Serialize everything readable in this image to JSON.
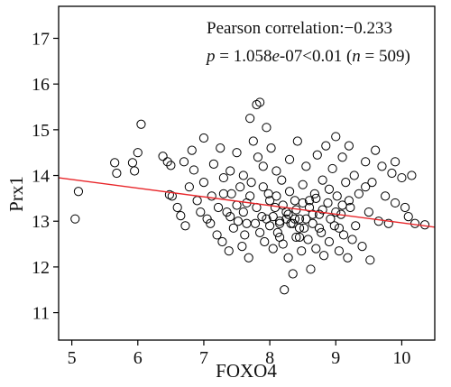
{
  "chart_data": {
    "type": "scatter",
    "xlabel": "FOXO4",
    "ylabel": "Prx1",
    "xlim": [
      4.8,
      10.5
    ],
    "ylim": [
      10.4,
      17.7
    ],
    "x_ticks": [
      "5",
      "6",
      "7",
      "8",
      "9",
      "10"
    ],
    "y_ticks": [
      "11",
      "12",
      "13",
      "14",
      "15",
      "16",
      "17"
    ],
    "annotation": {
      "line1": "Pearson correlation:−0.233",
      "p_symbol": "p",
      "p_eq": " = 1.058",
      "e_symbol": "e",
      "p_tail": "-07<0.01 (",
      "n_symbol": "n",
      "n_tail": " = 509)"
    },
    "fit_line": {
      "color": "#e8262a",
      "x": [
        4.8,
        10.5
      ],
      "y": [
        13.95,
        12.87
      ]
    },
    "n": 509,
    "marker": {
      "shape": "open-circle",
      "color": "#000000"
    },
    "points_visible": [
      [
        5.05,
        13.05
      ],
      [
        5.1,
        13.65
      ],
      [
        5.65,
        14.28
      ],
      [
        5.68,
        14.05
      ],
      [
        5.92,
        14.28
      ],
      [
        5.95,
        14.1
      ],
      [
        6.0,
        14.5
      ],
      [
        6.05,
        15.12
      ],
      [
        6.38,
        14.42
      ],
      [
        6.45,
        14.3
      ],
      [
        6.5,
        14.22
      ],
      [
        6.48,
        13.58
      ],
      [
        6.52,
        13.55
      ],
      [
        6.6,
        13.3
      ],
      [
        6.65,
        13.12
      ],
      [
        6.7,
        14.3
      ],
      [
        6.72,
        12.9
      ],
      [
        6.78,
        13.75
      ],
      [
        6.82,
        14.55
      ],
      [
        6.85,
        14.12
      ],
      [
        6.9,
        13.45
      ],
      [
        6.95,
        13.2
      ],
      [
        7.0,
        14.82
      ],
      [
        7.0,
        13.85
      ],
      [
        7.05,
        13.05
      ],
      [
        7.1,
        12.95
      ],
      [
        7.12,
        13.55
      ],
      [
        7.15,
        14.25
      ],
      [
        7.2,
        12.7
      ],
      [
        7.22,
        13.3
      ],
      [
        7.25,
        14.6
      ],
      [
        7.28,
        12.55
      ],
      [
        7.3,
        13.95
      ],
      [
        7.35,
        13.2
      ],
      [
        7.38,
        12.35
      ],
      [
        7.4,
        14.1
      ],
      [
        7.42,
        13.6
      ],
      [
        7.45,
        12.85
      ],
      [
        7.5,
        14.5
      ],
      [
        7.52,
        13.0
      ],
      [
        7.55,
        13.75
      ],
      [
        7.58,
        12.45
      ],
      [
        7.6,
        14.0
      ],
      [
        7.62,
        12.7
      ],
      [
        7.65,
        13.4
      ],
      [
        7.68,
        12.2
      ],
      [
        7.7,
        15.25
      ],
      [
        7.72,
        13.85
      ],
      [
        7.75,
        14.75
      ],
      [
        7.78,
        12.95
      ],
      [
        7.8,
        15.55
      ],
      [
        7.82,
        14.4
      ],
      [
        7.85,
        15.6
      ],
      [
        7.88,
        13.1
      ],
      [
        7.9,
        14.2
      ],
      [
        7.92,
        12.55
      ],
      [
        7.95,
        15.05
      ],
      [
        7.98,
        13.6
      ],
      [
        8.0,
        12.9
      ],
      [
        8.02,
        14.6
      ],
      [
        8.05,
        12.4
      ],
      [
        8.08,
        13.3
      ],
      [
        8.1,
        14.1
      ],
      [
        8.12,
        12.75
      ],
      [
        8.15,
        13.0
      ],
      [
        8.18,
        13.9
      ],
      [
        8.2,
        12.5
      ],
      [
        8.22,
        11.5
      ],
      [
        8.25,
        13.2
      ],
      [
        8.28,
        12.2
      ],
      [
        8.3,
        14.35
      ],
      [
        8.32,
        12.95
      ],
      [
        8.35,
        11.85
      ],
      [
        8.38,
        13.45
      ],
      [
        8.4,
        12.65
      ],
      [
        8.42,
        14.75
      ],
      [
        8.45,
        13.05
      ],
      [
        8.48,
        12.35
      ],
      [
        8.5,
        13.8
      ],
      [
        8.52,
        12.85
      ],
      [
        8.55,
        14.2
      ],
      [
        8.58,
        12.6
      ],
      [
        8.6,
        13.3
      ],
      [
        8.62,
        11.95
      ],
      [
        8.65,
        12.95
      ],
      [
        8.68,
        13.6
      ],
      [
        8.7,
        12.4
      ],
      [
        8.72,
        14.45
      ],
      [
        8.75,
        13.15
      ],
      [
        8.78,
        12.75
      ],
      [
        8.8,
        13.9
      ],
      [
        8.82,
        12.25
      ],
      [
        8.85,
        14.65
      ],
      [
        8.88,
        13.4
      ],
      [
        8.9,
        12.55
      ],
      [
        8.92,
        13.05
      ],
      [
        8.95,
        14.15
      ],
      [
        8.98,
        12.9
      ],
      [
        9.0,
        14.85
      ],
      [
        9.02,
        13.55
      ],
      [
        9.05,
        12.35
      ],
      [
        9.08,
        13.15
      ],
      [
        9.1,
        14.4
      ],
      [
        9.12,
        12.7
      ],
      [
        9.15,
        13.85
      ],
      [
        9.18,
        12.2
      ],
      [
        9.2,
        14.65
      ],
      [
        9.22,
        13.3
      ],
      [
        9.25,
        12.6
      ],
      [
        9.28,
        14.0
      ],
      [
        9.3,
        12.9
      ],
      [
        9.35,
        13.6
      ],
      [
        9.4,
        12.45
      ],
      [
        9.45,
        14.3
      ],
      [
        9.5,
        13.2
      ],
      [
        9.52,
        12.15
      ],
      [
        9.55,
        13.85
      ],
      [
        9.6,
        14.55
      ],
      [
        9.65,
        13.0
      ],
      [
        9.7,
        14.2
      ],
      [
        9.75,
        13.55
      ],
      [
        9.8,
        12.95
      ],
      [
        9.85,
        14.05
      ],
      [
        9.9,
        13.4
      ],
      [
        10.0,
        13.95
      ],
      [
        10.05,
        13.3
      ],
      [
        10.1,
        13.1
      ],
      [
        10.15,
        14.0
      ],
      [
        10.2,
        12.95
      ],
      [
        10.35,
        12.92
      ],
      [
        9.9,
        14.3
      ],
      [
        9.45,
        13.75
      ],
      [
        7.3,
        13.6
      ],
      [
        7.5,
        13.35
      ],
      [
        7.7,
        13.55
      ],
      [
        7.9,
        13.75
      ],
      [
        8.1,
        13.55
      ],
      [
        8.3,
        13.65
      ],
      [
        8.5,
        13.4
      ],
      [
        8.7,
        13.5
      ],
      [
        8.9,
        13.7
      ],
      [
        9.1,
        13.35
      ],
      [
        7.4,
        13.1
      ],
      [
        7.6,
        13.2
      ],
      [
        7.8,
        13.3
      ],
      [
        8.0,
        13.45
      ],
      [
        8.2,
        13.35
      ],
      [
        8.4,
        13.25
      ],
      [
        8.6,
        13.45
      ],
      [
        8.8,
        13.25
      ],
      [
        9.0,
        13.2
      ],
      [
        9.2,
        13.45
      ],
      [
        8.15,
        12.95
      ],
      [
        8.25,
        13.05
      ],
      [
        8.35,
        12.95
      ],
      [
        8.45,
        12.85
      ],
      [
        8.05,
        13.1
      ],
      [
        8.55,
        13.05
      ],
      [
        7.95,
        13.05
      ],
      [
        8.65,
        13.15
      ],
      [
        8.28,
        13.15
      ],
      [
        8.38,
        13.05
      ],
      [
        7.85,
        12.75
      ],
      [
        8.75,
        12.85
      ],
      [
        8.15,
        12.65
      ],
      [
        8.45,
        12.65
      ],
      [
        7.65,
        12.95
      ],
      [
        9.05,
        12.85
      ]
    ]
  }
}
